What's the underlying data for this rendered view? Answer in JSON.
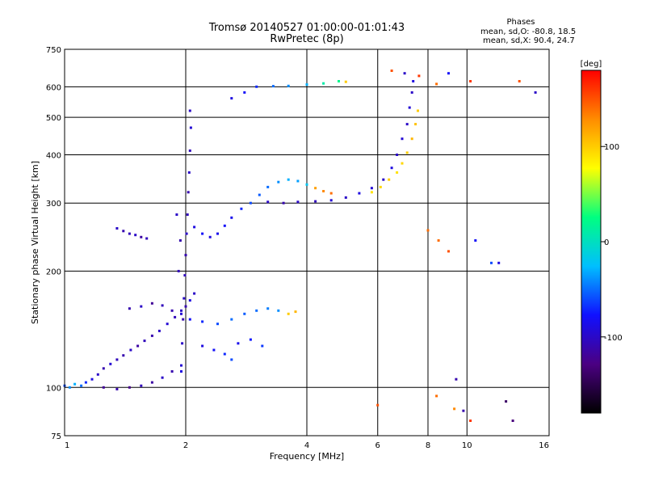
{
  "header": {
    "title_line1": "Tromsø 20140527 01:00:00-01:01:43",
    "title_line2": "RwPretec (8p)"
  },
  "info": {
    "title": "Phases",
    "line_o": "mean, sd,O: -80.8, 18.5",
    "line_x": "mean, sd,X:  90.4, 24.7"
  },
  "colorbar": {
    "unit": "[deg]",
    "ticks": [
      {
        "value": 100,
        "label": "100"
      },
      {
        "value": 0,
        "label": "0"
      },
      {
        "value": -100,
        "label": "-100"
      }
    ],
    "range": [
      -180,
      180
    ],
    "colors": [
      "#000000",
      "#4b0082",
      "#1010ff",
      "#00bfff",
      "#00ff80",
      "#ffff00",
      "#ff8c00",
      "#ff0000"
    ]
  },
  "chart_data": {
    "type": "scatter",
    "title": "Tromsø 20140527 01:00:00-01:01:43",
    "subtitle": "RwPretec (8p)",
    "xlabel": "Frequency [MHz]",
    "ylabel": "Stationary phase Virtual Height [km]",
    "xscale": "log",
    "yscale": "log",
    "xlim": [
      1,
      16
    ],
    "ylim": [
      75,
      750
    ],
    "xticks": [
      {
        "value": 1,
        "label": "1"
      },
      {
        "value": 2,
        "label": "2"
      },
      {
        "value": 4,
        "label": "4"
      },
      {
        "value": 6,
        "label": "6"
      },
      {
        "value": 8,
        "label": "8"
      },
      {
        "value": 10,
        "label": "10"
      },
      {
        "value": 16,
        "label": "16"
      }
    ],
    "yticks": [
      {
        "value": 75,
        "label": "75"
      },
      {
        "value": 100,
        "label": "100"
      },
      {
        "value": 200,
        "label": "200"
      },
      {
        "value": 300,
        "label": "300"
      },
      {
        "value": 400,
        "label": "400"
      },
      {
        "value": 500,
        "label": "500"
      },
      {
        "value": 600,
        "label": "600"
      },
      {
        "value": 750,
        "label": "750"
      }
    ],
    "grid": true,
    "color_quantity": "phase [deg]",
    "color_range": [
      -180,
      180
    ],
    "series": [
      {
        "points": [
          [
            1.0,
            101,
            -60
          ],
          [
            1.03,
            100,
            -40
          ],
          [
            1.06,
            102,
            -30
          ],
          [
            1.1,
            101,
            -50
          ],
          [
            1.13,
            103,
            -70
          ],
          [
            1.17,
            105,
            -90
          ],
          [
            1.21,
            108,
            -100
          ],
          [
            1.25,
            112,
            -110
          ],
          [
            1.3,
            115,
            -95
          ],
          [
            1.35,
            118,
            -105
          ],
          [
            1.4,
            121,
            -110
          ],
          [
            1.46,
            125,
            -100
          ],
          [
            1.52,
            128,
            -115
          ],
          [
            1.58,
            132,
            -105
          ],
          [
            1.65,
            136,
            -110
          ],
          [
            1.72,
            140,
            -100
          ],
          [
            1.8,
            146,
            -95
          ],
          [
            1.88,
            152,
            -105
          ],
          [
            1.95,
            158,
            -100
          ],
          [
            2.0,
            162,
            -110
          ],
          [
            2.05,
            168,
            -90
          ],
          [
            2.1,
            175,
            -100
          ]
        ]
      },
      {
        "points": [
          [
            1.25,
            100,
            -120
          ],
          [
            1.35,
            99,
            -110
          ],
          [
            1.45,
            100,
            -125
          ],
          [
            1.55,
            101,
            -105
          ],
          [
            1.65,
            103,
            -115
          ],
          [
            1.75,
            106,
            -100
          ],
          [
            1.85,
            110,
            -110
          ],
          [
            1.95,
            114,
            -95
          ]
        ]
      },
      {
        "points": [
          [
            1.45,
            160,
            -110
          ],
          [
            1.55,
            162,
            -100
          ],
          [
            1.65,
            165,
            -120
          ],
          [
            1.75,
            163,
            -105
          ],
          [
            1.85,
            158,
            -110
          ],
          [
            1.95,
            155,
            -95
          ],
          [
            2.05,
            150,
            -80
          ],
          [
            2.2,
            148,
            -70
          ],
          [
            2.4,
            146,
            -60
          ],
          [
            2.6,
            150,
            -50
          ],
          [
            2.8,
            155,
            -55
          ],
          [
            3.0,
            158,
            -50
          ],
          [
            3.2,
            160,
            -45
          ],
          [
            3.4,
            158,
            -40
          ],
          [
            3.6,
            155,
            100
          ],
          [
            3.75,
            157,
            110
          ]
        ]
      },
      {
        "points": [
          [
            2.2,
            128,
            -90
          ],
          [
            2.35,
            125,
            -80
          ],
          [
            2.5,
            122,
            -70
          ],
          [
            2.6,
            118,
            -60
          ],
          [
            2.7,
            130,
            -85
          ],
          [
            2.9,
            133,
            -75
          ],
          [
            3.1,
            128,
            -65
          ]
        ]
      },
      {
        "points": [
          [
            1.35,
            258,
            -100
          ],
          [
            1.4,
            254,
            -110
          ],
          [
            1.45,
            250,
            -105
          ],
          [
            1.5,
            248,
            -100
          ],
          [
            1.55,
            245,
            -115
          ],
          [
            1.6,
            243,
            -105
          ]
        ]
      },
      {
        "points": [
          [
            1.95,
            110,
            -90
          ],
          [
            1.96,
            130,
            -100
          ],
          [
            1.97,
            150,
            -110
          ],
          [
            1.98,
            170,
            -100
          ],
          [
            1.99,
            195,
            -105
          ],
          [
            2.0,
            220,
            -110
          ],
          [
            2.01,
            250,
            -100
          ],
          [
            2.02,
            280,
            -105
          ],
          [
            2.03,
            320,
            -110
          ],
          [
            2.04,
            360,
            -100
          ],
          [
            2.05,
            410,
            -105
          ],
          [
            2.06,
            470,
            -95
          ],
          [
            2.05,
            520,
            -100
          ],
          [
            1.92,
            200,
            -105
          ],
          [
            1.94,
            240,
            -110
          ],
          [
            1.9,
            280,
            -100
          ]
        ]
      },
      {
        "points": [
          [
            2.1,
            260,
            -90
          ],
          [
            2.2,
            250,
            -80
          ],
          [
            2.3,
            245,
            -90
          ],
          [
            2.4,
            250,
            -85
          ],
          [
            2.5,
            262,
            -80
          ],
          [
            2.6,
            275,
            -85
          ],
          [
            2.75,
            290,
            -70
          ],
          [
            2.9,
            300,
            -60
          ],
          [
            3.05,
            315,
            -55
          ],
          [
            3.2,
            330,
            -50
          ],
          [
            3.4,
            340,
            -40
          ],
          [
            3.6,
            345,
            -30
          ],
          [
            3.8,
            342,
            -35
          ],
          [
            4.0,
            335,
            -20
          ],
          [
            4.2,
            328,
            120
          ],
          [
            4.4,
            322,
            130
          ],
          [
            4.6,
            318,
            140
          ]
        ]
      },
      {
        "points": [
          [
            3.2,
            302,
            -100
          ],
          [
            3.5,
            300,
            -110
          ],
          [
            3.8,
            302,
            -100
          ],
          [
            4.2,
            303,
            -105
          ],
          [
            4.6,
            305,
            -95
          ],
          [
            5.0,
            310,
            -100
          ],
          [
            5.4,
            318,
            -90
          ],
          [
            5.8,
            328,
            -95
          ],
          [
            6.2,
            345,
            -100
          ],
          [
            6.5,
            370,
            -90
          ],
          [
            6.7,
            400,
            -100
          ],
          [
            6.9,
            440,
            -95
          ],
          [
            7.1,
            480,
            -100
          ],
          [
            7.2,
            530,
            -95
          ],
          [
            7.3,
            580,
            -100
          ],
          [
            7.35,
            620,
            -90
          ]
        ]
      },
      {
        "points": [
          [
            5.8,
            320,
            90
          ],
          [
            6.1,
            330,
            95
          ],
          [
            6.4,
            345,
            100
          ],
          [
            6.7,
            360,
            90
          ],
          [
            6.9,
            380,
            95
          ],
          [
            7.1,
            405,
            100
          ],
          [
            7.3,
            440,
            110
          ],
          [
            7.45,
            480,
            105
          ],
          [
            7.55,
            520,
            100
          ]
        ]
      },
      {
        "points": [
          [
            2.6,
            560,
            -90
          ],
          [
            2.8,
            580,
            -80
          ],
          [
            3.0,
            600,
            -70
          ],
          [
            3.3,
            602,
            -50
          ],
          [
            3.6,
            603,
            -40
          ],
          [
            4.0,
            608,
            -30
          ],
          [
            4.4,
            612,
            10
          ],
          [
            4.8,
            620,
            20
          ],
          [
            5.0,
            618,
            100
          ]
        ]
      },
      {
        "points": [
          [
            6.5,
            660,
            150
          ],
          [
            7.0,
            650,
            -100
          ],
          [
            7.6,
            640,
            160
          ],
          [
            8.4,
            610,
            140
          ],
          [
            9.0,
            650,
            -80
          ],
          [
            10.2,
            620,
            160
          ],
          [
            13.5,
            620,
            150
          ],
          [
            14.8,
            580,
            -100
          ]
        ]
      },
      {
        "points": [
          [
            8.0,
            255,
            140
          ],
          [
            8.5,
            240,
            140
          ],
          [
            9.0,
            225,
            150
          ],
          [
            10.5,
            240,
            -80
          ],
          [
            11.5,
            210,
            -60
          ],
          [
            12.0,
            210,
            -90
          ],
          [
            8.4,
            95,
            140
          ],
          [
            9.3,
            88,
            130
          ],
          [
            9.8,
            87,
            -110
          ],
          [
            10.2,
            82,
            160
          ],
          [
            13.0,
            82,
            -130
          ],
          [
            12.5,
            92,
            -140
          ],
          [
            9.4,
            105,
            -110
          ],
          [
            6.0,
            90,
            150
          ]
        ]
      }
    ]
  }
}
